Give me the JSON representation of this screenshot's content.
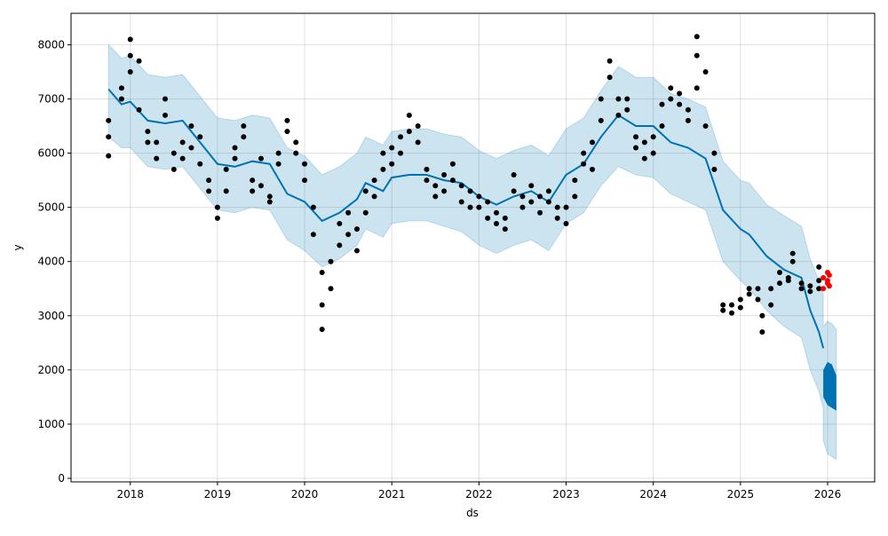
{
  "chart_data": {
    "type": "line",
    "title": "",
    "xlabel": "ds",
    "ylabel": "y",
    "xlim": [
      2017.32,
      2026.54
    ],
    "ylim": [
      -65,
      8580
    ],
    "grid": true,
    "x_ticks": [
      2018,
      2019,
      2020,
      2021,
      2022,
      2023,
      2024,
      2025,
      2026
    ],
    "x_tick_labels": [
      "2018",
      "2019",
      "2020",
      "2021",
      "2022",
      "2023",
      "2024",
      "2025",
      "2026"
    ],
    "y_ticks": [
      0,
      1000,
      2000,
      3000,
      4000,
      5000,
      6000,
      7000,
      8000
    ],
    "y_tick_labels": [
      "0",
      "1000",
      "2000",
      "3000",
      "4000",
      "5000",
      "6000",
      "7000",
      "8000"
    ],
    "colors": {
      "forecast": "#0072B2",
      "interval": "#0072B2",
      "observed": "#000000",
      "recent": "#ff0000"
    },
    "forecast": {
      "x": [
        2017.75,
        2017.9,
        2018.0,
        2018.2,
        2018.4,
        2018.6,
        2018.8,
        2019.0,
        2019.2,
        2019.4,
        2019.6,
        2019.8,
        2020.0,
        2020.2,
        2020.4,
        2020.6,
        2020.7,
        2020.9,
        2021.0,
        2021.2,
        2021.4,
        2021.6,
        2021.8,
        2022.0,
        2022.2,
        2022.4,
        2022.6,
        2022.8,
        2023.0,
        2023.2,
        2023.4,
        2023.6,
        2023.8,
        2024.0,
        2024.2,
        2024.4,
        2024.6,
        2024.8,
        2025.0,
        2025.1,
        2025.3,
        2025.5,
        2025.7,
        2025.8,
        2025.9,
        2025.95
      ],
      "yhat": [
        7180,
        6900,
        6950,
        6600,
        6550,
        6600,
        6200,
        5800,
        5750,
        5850,
        5800,
        5250,
        5100,
        4750,
        4900,
        5150,
        5450,
        5300,
        5550,
        5600,
        5600,
        5500,
        5450,
        5200,
        5050,
        5200,
        5300,
        5100,
        5600,
        5800,
        6300,
        6700,
        6500,
        6500,
        6200,
        6100,
        5900,
        4950,
        4600,
        4500,
        4100,
        3850,
        3700,
        3100,
        2700,
        2400
      ],
      "yhat_lower": [
        6300,
        6100,
        6100,
        5750,
        5700,
        5750,
        5350,
        4950,
        4900,
        5000,
        4950,
        4400,
        4200,
        3900,
        4050,
        4300,
        4600,
        4450,
        4700,
        4750,
        4750,
        4650,
        4550,
        4300,
        4150,
        4300,
        4400,
        4200,
        4700,
        4900,
        5400,
        5750,
        5600,
        5550,
        5250,
        5100,
        4950,
        4000,
        3650,
        3500,
        3100,
        2800,
        2600,
        2000,
        1600,
        1300
      ],
      "yhat_upper": [
        8000,
        7750,
        7800,
        7450,
        7400,
        7450,
        7050,
        6650,
        6600,
        6700,
        6650,
        6100,
        5950,
        5600,
        5750,
        6000,
        6300,
        6150,
        6400,
        6450,
        6450,
        6350,
        6300,
        6050,
        5900,
        6050,
        6150,
        5950,
        6450,
        6650,
        7150,
        7600,
        7400,
        7400,
        7100,
        7000,
        6850,
        5850,
        5500,
        5450,
        5050,
        4850,
        4650,
        4050,
        3650,
        3400
      ]
    },
    "forecast_horizon": {
      "x": [
        2025.95,
        2026.0,
        2026.05,
        2026.1
      ],
      "yhat_min": [
        1500,
        1350,
        1300,
        1250
      ],
      "yhat_max": [
        2000,
        2150,
        2100,
        1900
      ],
      "interval_lower": [
        700,
        450,
        400,
        350
      ],
      "interval_upper": [
        2800,
        2900,
        2850,
        2750
      ]
    },
    "observed": [
      [
        2017.75,
        5950,
        6300,
        6600
      ],
      [
        2017.9,
        7000,
        7200
      ],
      [
        2018.0,
        7500,
        7800,
        8100
      ],
      [
        2018.1,
        7700,
        6800
      ],
      [
        2018.2,
        6400,
        6200
      ],
      [
        2018.3,
        5900,
        6200
      ],
      [
        2018.4,
        6700,
        7000
      ],
      [
        2018.5,
        6000,
        5700
      ],
      [
        2018.6,
        5900,
        6200
      ],
      [
        2018.7,
        6500,
        6100
      ],
      [
        2018.8,
        6300,
        5800
      ],
      [
        2018.9,
        5500,
        5300
      ],
      [
        2019.0,
        5000,
        4800
      ],
      [
        2019.1,
        5300,
        5700
      ],
      [
        2019.2,
        5900,
        6100
      ],
      [
        2019.3,
        6300,
        6500
      ],
      [
        2019.4,
        5500,
        5300
      ],
      [
        2019.5,
        5400,
        5900
      ],
      [
        2019.6,
        5100,
        5200
      ],
      [
        2019.7,
        5800,
        6000
      ],
      [
        2019.8,
        6400,
        6600
      ],
      [
        2019.9,
        6200,
        6000
      ],
      [
        2020.0,
        5800,
        5500
      ],
      [
        2020.1,
        5000,
        4500
      ],
      [
        2020.2,
        3800,
        3200,
        2750
      ],
      [
        2020.3,
        3500,
        4000
      ],
      [
        2020.4,
        4300,
        4700
      ],
      [
        2020.5,
        4500,
        4900
      ],
      [
        2020.6,
        4200,
        4600
      ],
      [
        2020.7,
        4900,
        5300
      ],
      [
        2020.8,
        5200,
        5500
      ],
      [
        2020.9,
        5700,
        6000
      ],
      [
        2021.0,
        6100,
        5800
      ],
      [
        2021.1,
        6300,
        6000
      ],
      [
        2021.2,
        6700,
        6400
      ],
      [
        2021.3,
        6200,
        6500
      ],
      [
        2021.4,
        5700,
        5500
      ],
      [
        2021.5,
        5400,
        5200
      ],
      [
        2021.6,
        5600,
        5300
      ],
      [
        2021.7,
        5800,
        5500
      ],
      [
        2021.8,
        5400,
        5100
      ],
      [
        2021.9,
        5000,
        5300
      ],
      [
        2022.0,
        5000,
        5200
      ],
      [
        2022.1,
        5100,
        4800
      ],
      [
        2022.2,
        4700,
        4900
      ],
      [
        2022.3,
        4600,
        4800
      ],
      [
        2022.4,
        5300,
        5600
      ],
      [
        2022.5,
        5200,
        5000
      ],
      [
        2022.6,
        5400,
        5100
      ],
      [
        2022.7,
        5200,
        4900
      ],
      [
        2022.8,
        5100,
        5300
      ],
      [
        2022.9,
        5000,
        4800
      ],
      [
        2023.0,
        4700,
        5000
      ],
      [
        2023.1,
        5200,
        5500
      ],
      [
        2023.2,
        5800,
        6000
      ],
      [
        2023.3,
        5700,
        6200
      ],
      [
        2023.4,
        6600,
        7000
      ],
      [
        2023.5,
        7400,
        7700
      ],
      [
        2023.6,
        7000,
        6700
      ],
      [
        2023.7,
        6800,
        7000
      ],
      [
        2023.8,
        6300,
        6100
      ],
      [
        2023.9,
        6200,
        5900
      ],
      [
        2024.0,
        6000,
        6300
      ],
      [
        2024.1,
        6500,
        6900
      ],
      [
        2024.2,
        7000,
        7200
      ],
      [
        2024.3,
        7100,
        6900
      ],
      [
        2024.4,
        6800,
        6600
      ],
      [
        2024.5,
        7200,
        7800,
        8150
      ],
      [
        2024.6,
        7500,
        6500
      ],
      [
        2024.7,
        6000,
        5700
      ],
      [
        2024.8,
        3100,
        3200
      ],
      [
        2024.9,
        3050,
        3200
      ],
      [
        2025.0,
        3150,
        3300
      ],
      [
        2025.1,
        3400,
        3500
      ],
      [
        2025.2,
        3300,
        3500
      ],
      [
        2025.25,
        2700,
        3000
      ],
      [
        2025.35,
        3200,
        3500
      ],
      [
        2025.45,
        3600,
        3800
      ],
      [
        2025.55,
        3700,
        3650
      ],
      [
        2025.6,
        4000,
        4150
      ],
      [
        2025.7,
        3600,
        3500
      ],
      [
        2025.8,
        3450,
        3550
      ],
      [
        2025.9,
        3500,
        3650,
        3900
      ]
    ],
    "recent_observed": [
      [
        2025.95,
        3700,
        3500
      ],
      [
        2026.0,
        3600,
        3800,
        3650
      ],
      [
        2026.02,
        3750,
        3550
      ]
    ]
  }
}
